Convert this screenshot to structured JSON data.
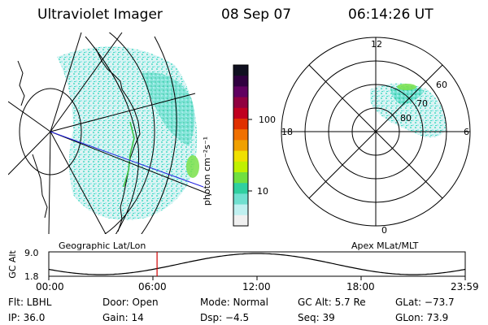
{
  "header": {
    "instrument": "Ultraviolet Imager",
    "date": "08 Sep 07",
    "time": "06:14:26 UT"
  },
  "geo_panel": {
    "caption": "Geographic Lat/Lon"
  },
  "colorbar": {
    "label": "photon cm⁻²s⁻¹",
    "ticks": [
      "100",
      "10"
    ],
    "colors": [
      "#101020",
      "#300040",
      "#600060",
      "#900040",
      "#c00020",
      "#e03000",
      "#f07000",
      "#f0a000",
      "#f0e000",
      "#c0f000",
      "#70e040",
      "#30d0a0",
      "#70e0d0",
      "#c0f0f0",
      "#f0f0f0"
    ]
  },
  "polar_panel": {
    "caption": "Apex MLat/MLT",
    "mlt_labels": {
      "top": "12",
      "left": "18",
      "right": "6",
      "bottom": "0"
    },
    "lat_labels": [
      "60",
      "70",
      "80"
    ]
  },
  "altitude_plot": {
    "ylabel": "GC Alt",
    "yticks": [
      "9.0",
      "1.8"
    ],
    "xticks": [
      "00:00",
      "06:00",
      "12:00",
      "18:00",
      "23:59"
    ],
    "current_time_marker_hours": 6.24
  },
  "status": {
    "flt": "Flt: LBHL",
    "door": "Door: Open",
    "mode": "Mode: Normal",
    "gc_alt": "GC Alt: 5.7 Re",
    "glat": "GLat: −73.7",
    "ip": "IP: 36.0",
    "gain": "Gain: 14",
    "dsp": "Dsp:    −4.5",
    "seq": "Seq: 39",
    "glon": "GLon:  73.9"
  }
}
